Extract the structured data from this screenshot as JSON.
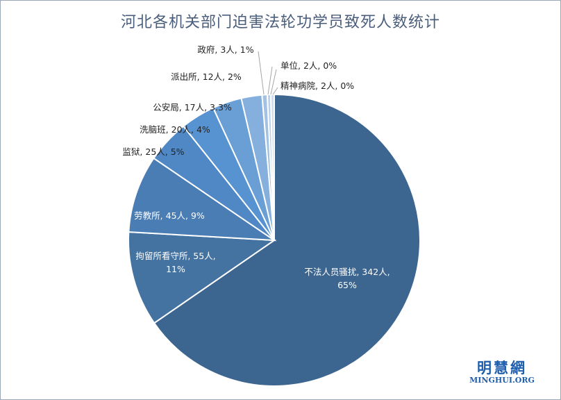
{
  "chart_data": {
    "type": "pie",
    "title": "河北各机关部门迫害法轮功学员致死人数统计",
    "slices": [
      {
        "category": "不法人员骚扰",
        "value": 342,
        "percent": "65%",
        "color": "#3c6690"
      },
      {
        "category": "拘留所看守所",
        "value": 55,
        "percent": "11%",
        "color": "#4473a1"
      },
      {
        "category": "劳教所",
        "value": 45,
        "percent": "9%",
        "color": "#4a7db4"
      },
      {
        "category": "监狱",
        "value": 25,
        "percent": "5%",
        "color": "#4f88c4"
      },
      {
        "category": "洗脑班",
        "value": 20,
        "percent": "4%",
        "color": "#5693d0"
      },
      {
        "category": "公安局",
        "value": 17,
        "percent": "3.3%",
        "color": "#6a9fd6"
      },
      {
        "category": "派出所",
        "value": 12,
        "percent": "2%",
        "color": "#85afdc"
      },
      {
        "category": "政府",
        "value": 3,
        "percent": "1%",
        "color": "#a3c1e3"
      },
      {
        "category": "单位",
        "value": 2,
        "percent": "0%",
        "color": "#b9cfea"
      },
      {
        "category": "精神病院",
        "value": 2,
        "percent": "0%",
        "color": "#cfddf1"
      }
    ],
    "data_labels": [
      "不法人员骚扰, 342人,",
      "65%",
      "拘留所看守所, 55人,",
      "11%",
      "劳教所, 45人, 9%",
      "监狱, 25人, 5%",
      "洗脑班, 20人, 4%",
      "公安局, 17人, 3.3%",
      "派出所, 12人, 2%",
      "政府, 3人, 1%",
      "单位, 2人, 0%",
      "精神病院, 2人, 0%"
    ],
    "legend": "none"
  },
  "watermark": {
    "name": "明慧網",
    "domain": "MINGHUI.ORG"
  },
  "colors": {
    "title": "#4a5e7c",
    "watermark": "#1f5fae",
    "slice_border": "#ffffff",
    "leader_line": "#a6a6a6"
  }
}
